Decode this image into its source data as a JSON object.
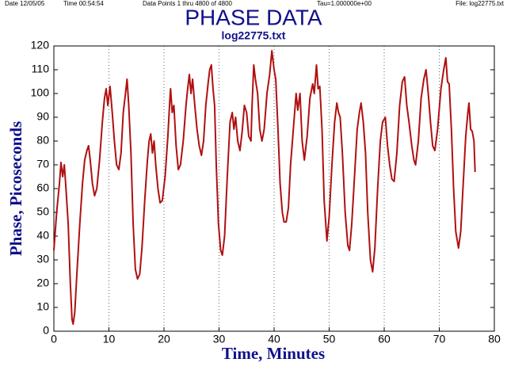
{
  "header": {
    "date": "Date 12/05/05",
    "time": "Time 00:54:54",
    "points": "Data Points 1 thru 4800 of 4800",
    "tau": "Tau=1.000000e+00",
    "file": "File: log22775.txt"
  },
  "chart_data": {
    "type": "line",
    "title": "PHASE DATA",
    "subtitle": "log22775.txt",
    "x_label": "Time, Minutes",
    "y_label": "Phase, Picoseconds",
    "xlim": [
      0,
      80
    ],
    "xticks": [
      0,
      10,
      20,
      30,
      40,
      50,
      60,
      70,
      80
    ],
    "ylim": [
      0,
      120
    ],
    "yticks": [
      0,
      10,
      20,
      30,
      40,
      50,
      60,
      70,
      80,
      90,
      100,
      110,
      120
    ],
    "grid": true,
    "series": [
      {
        "name": "Phase",
        "color": "#b01010",
        "x": [
          0,
          0.5,
          1,
          1.3,
          1.6,
          1.9,
          2.2,
          2.6,
          3,
          3.3,
          3.5,
          3.8,
          4.2,
          4.7,
          5.2,
          5.6,
          6,
          6.3,
          6.6,
          7,
          7.4,
          7.8,
          8.3,
          8.8,
          9.2,
          9.5,
          9.8,
          10.2,
          10.6,
          11,
          11.4,
          11.8,
          12.2,
          12.6,
          13,
          13.3,
          13.6,
          14,
          14.4,
          14.8,
          15.2,
          15.6,
          16,
          16.5,
          17,
          17.3,
          17.6,
          17.9,
          18.2,
          18.5,
          18.9,
          19.3,
          19.7,
          20.2,
          20.7,
          21,
          21.2,
          21.5,
          21.8,
          22.2,
          22.6,
          23,
          23.5,
          24,
          24.3,
          24.6,
          24.9,
          25.2,
          25.6,
          26,
          26.4,
          26.8,
          27.2,
          27.6,
          28,
          28.3,
          28.6,
          28.9,
          29.2,
          29.5,
          29.9,
          30.3,
          30.6,
          31,
          31.5,
          32,
          32.4,
          32.7,
          33,
          33.4,
          33.8,
          34.2,
          34.6,
          35,
          35.4,
          35.8,
          36,
          36.3,
          36.6,
          37,
          37.4,
          37.8,
          38.2,
          38.7,
          39.2,
          39.6,
          40,
          40.3,
          40.7,
          41.1,
          41.5,
          41.8,
          42.2,
          42.6,
          43,
          43.6,
          44,
          44.3,
          44.7,
          45.1,
          45.5,
          46,
          46.5,
          47,
          47.3,
          47.7,
          48,
          48.3,
          48.7,
          49.1,
          49.6,
          50,
          50.5,
          51,
          51.4,
          51.7,
          52,
          52.4,
          52.9,
          53.4,
          53.7,
          54.1,
          54.6,
          55.1,
          55.5,
          55.8,
          56.2,
          56.6,
          57,
          57.5,
          57.9,
          58.3,
          58.8,
          59.3,
          59.7,
          60.2,
          60.6,
          61,
          61.4,
          61.8,
          62.3,
          62.8,
          63.3,
          63.7,
          64.1,
          64.5,
          65,
          65.4,
          65.7,
          66.2,
          66.7,
          67.2,
          67.6,
          68,
          68.4,
          68.8,
          69.2,
          69.7,
          70.3,
          70.8,
          71.2,
          71.5,
          71.8,
          72.2,
          72.6,
          73,
          73.5,
          73.9,
          74.3,
          74.8,
          75.2,
          75.4,
          75.7,
          76,
          76.3,
          76.5
        ],
        "values": [
          34,
          50,
          62,
          71,
          65,
          70,
          60,
          45,
          20,
          5,
          3,
          8,
          25,
          45,
          62,
          72,
          76,
          78,
          72,
          62,
          57,
          60,
          72,
          88,
          98,
          102,
          95,
          103,
          92,
          80,
          70,
          68,
          75,
          92,
          100,
          106,
          95,
          75,
          45,
          26,
          22,
          24,
          35,
          55,
          72,
          80,
          83,
          75,
          80,
          70,
          60,
          54,
          55,
          65,
          82,
          95,
          102,
          92,
          95,
          78,
          68,
          70,
          80,
          95,
          102,
          108,
          100,
          106,
          95,
          85,
          78,
          74,
          80,
          95,
          104,
          110,
          112,
          102,
          95,
          70,
          45,
          34,
          32,
          40,
          65,
          88,
          92,
          85,
          90,
          80,
          76,
          84,
          95,
          92,
          82,
          80,
          95,
          112,
          106,
          100,
          85,
          80,
          85,
          100,
          108,
          118,
          110,
          106,
          85,
          62,
          50,
          46,
          46,
          52,
          70,
          88,
          100,
          93,
          100,
          80,
          72,
          82,
          98,
          104,
          100,
          112,
          102,
          103,
          85,
          55,
          38,
          48,
          70,
          88,
          96,
          92,
          90,
          75,
          50,
          36,
          34,
          45,
          65,
          85,
          92,
          96,
          88,
          75,
          50,
          30,
          25,
          35,
          60,
          80,
          88,
          90,
          78,
          70,
          64,
          63,
          75,
          95,
          105,
          107,
          95,
          88,
          78,
          72,
          70,
          80,
          98,
          106,
          110,
          100,
          88,
          78,
          76,
          85,
          102,
          110,
          115,
          105,
          104,
          85,
          60,
          42,
          35,
          42,
          60,
          82,
          92,
          96,
          85,
          84,
          80,
          67
        ]
      }
    ]
  }
}
